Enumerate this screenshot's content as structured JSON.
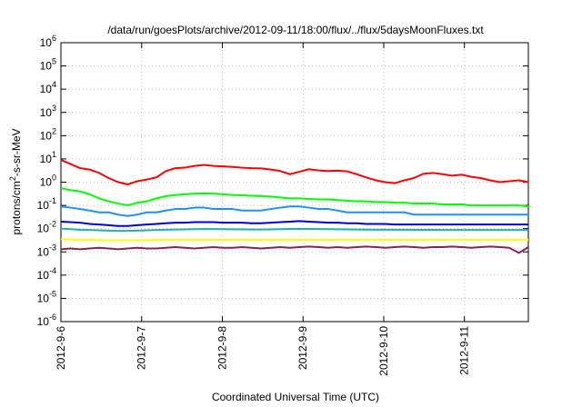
{
  "chart_data": {
    "type": "line",
    "title": "/data/run/goesPlots/archive/2012-09-11/18:00/flux/../flux/5daysMoonFluxes.txt",
    "xlabel": "Coordinated Universal Time (UTC)",
    "ylabel": {
      "base": "protons/cm",
      "sup": "2",
      "rest": "-s-sr-MeV"
    },
    "xlim": [
      "2012-09-06",
      "2012-09-11T19:00"
    ],
    "x_ticks": [
      "2012-9-6",
      "2012-9-7",
      "2012-9-8",
      "2012-9-9",
      "2012-9-10",
      "2012-9-11"
    ],
    "ylim": [
      1e-06,
      1000000.0
    ],
    "y_scale": "log",
    "y_ticks": [
      {
        "base": "10",
        "exp": "6"
      },
      {
        "base": "10",
        "exp": "5"
      },
      {
        "base": "10",
        "exp": "4"
      },
      {
        "base": "10",
        "exp": "3"
      },
      {
        "base": "10",
        "exp": "2"
      },
      {
        "base": "10",
        "exp": "1"
      },
      {
        "base": "10",
        "exp": "0"
      },
      {
        "base": "10",
        "exp": "-1"
      },
      {
        "base": "10",
        "exp": "-2"
      },
      {
        "base": "10",
        "exp": "-3"
      },
      {
        "base": "10",
        "exp": "-4"
      },
      {
        "base": "10",
        "exp": "-5"
      },
      {
        "base": "10",
        "exp": "-6"
      }
    ],
    "grid": true,
    "series": [
      {
        "color": "#ff0000",
        "values": [
          9,
          6,
          4,
          3.5,
          2.5,
          1.5,
          1,
          0.8,
          1.1,
          1.3,
          1.6,
          3,
          4,
          4.2,
          5,
          5.5,
          5,
          4.8,
          4.5,
          4.2,
          4,
          3.9,
          3.5,
          3,
          2.2,
          2.8,
          3.6,
          3.2,
          3,
          3.1,
          2.9,
          2.2,
          1.6,
          1.2,
          1,
          0.9,
          1.2,
          1.5,
          2.3,
          2.5,
          2.2,
          1.9,
          2.1,
          1.7,
          1.5,
          1.2,
          1,
          1.1,
          1.2,
          1
        ]
      },
      {
        "color": "#00ff00",
        "values": [
          0.55,
          0.45,
          0.4,
          0.3,
          0.2,
          0.15,
          0.12,
          0.1,
          0.13,
          0.15,
          0.2,
          0.25,
          0.28,
          0.3,
          0.32,
          0.33,
          0.32,
          0.3,
          0.28,
          0.27,
          0.26,
          0.25,
          0.24,
          0.22,
          0.2,
          0.2,
          0.19,
          0.18,
          0.18,
          0.17,
          0.16,
          0.15,
          0.15,
          0.14,
          0.14,
          0.13,
          0.13,
          0.12,
          0.12,
          0.12,
          0.11,
          0.11,
          0.11,
          0.1,
          0.1,
          0.1,
          0.1,
          0.1,
          0.1,
          0.09
        ]
      },
      {
        "color": "#1e90ff",
        "values": [
          0.09,
          0.08,
          0.07,
          0.06,
          0.05,
          0.05,
          0.04,
          0.035,
          0.04,
          0.05,
          0.05,
          0.06,
          0.07,
          0.07,
          0.08,
          0.08,
          0.07,
          0.07,
          0.07,
          0.06,
          0.06,
          0.06,
          0.07,
          0.08,
          0.09,
          0.09,
          0.08,
          0.07,
          0.07,
          0.06,
          0.05,
          0.05,
          0.05,
          0.05,
          0.05,
          0.05,
          0.05,
          0.04,
          0.04,
          0.04,
          0.04,
          0.04,
          0.04,
          0.04,
          0.04,
          0.04,
          0.04,
          0.04,
          0.04,
          0.04
        ]
      },
      {
        "color": "#0000cd",
        "values": [
          0.02,
          0.019,
          0.018,
          0.016,
          0.015,
          0.014,
          0.013,
          0.013,
          0.014,
          0.015,
          0.016,
          0.017,
          0.018,
          0.018,
          0.019,
          0.019,
          0.019,
          0.018,
          0.018,
          0.018,
          0.017,
          0.017,
          0.018,
          0.019,
          0.02,
          0.021,
          0.02,
          0.019,
          0.018,
          0.018,
          0.017,
          0.017,
          0.016,
          0.016,
          0.016,
          0.015,
          0.015,
          0.015,
          0.015,
          0.015,
          0.015,
          0.015,
          0.015,
          0.015,
          0.015,
          0.015,
          0.015,
          0.015,
          0.015,
          0.015
        ]
      },
      {
        "color": "#20b2aa",
        "values": [
          0.01,
          0.0095,
          0.009,
          0.0088,
          0.0085,
          0.0082,
          0.008,
          0.008,
          0.0082,
          0.0085,
          0.0088,
          0.009,
          0.0092,
          0.0093,
          0.0095,
          0.0096,
          0.0096,
          0.0095,
          0.0094,
          0.0093,
          0.0092,
          0.0092,
          0.0093,
          0.0095,
          0.0097,
          0.0098,
          0.0097,
          0.0096,
          0.0095,
          0.0094,
          0.0093,
          0.0092,
          0.0091,
          0.009,
          0.009,
          0.009,
          0.009,
          0.0089,
          0.0089,
          0.0089,
          0.0088,
          0.0088,
          0.0088,
          0.0088,
          0.0088,
          0.0088,
          0.0088,
          0.0088,
          0.0088,
          0.0088
        ]
      },
      {
        "color": "#ffff00",
        "values": [
          0.0035,
          0.0034,
          0.0033,
          0.0033,
          0.0032,
          0.0032,
          0.0032,
          0.0032,
          0.0032,
          0.0032,
          0.0033,
          0.0033,
          0.0033,
          0.0033,
          0.0033,
          0.0033,
          0.0033,
          0.0033,
          0.0033,
          0.0033,
          0.0033,
          0.0033,
          0.0033,
          0.0033,
          0.0033,
          0.0033,
          0.0033,
          0.0033,
          0.0033,
          0.0033,
          0.0033,
          0.0033,
          0.0033,
          0.0033,
          0.0033,
          0.0033,
          0.0033,
          0.0033,
          0.0033,
          0.0033,
          0.0033,
          0.0033,
          0.0033,
          0.0033,
          0.0033,
          0.0033,
          0.0033,
          0.0033,
          0.0033,
          0.0033
        ]
      },
      {
        "color": "#8b2252",
        "values": [
          0.0013,
          0.0014,
          0.0013,
          0.0014,
          0.0015,
          0.0014,
          0.0013,
          0.0014,
          0.0015,
          0.0014,
          0.0014,
          0.0015,
          0.0016,
          0.0015,
          0.0014,
          0.0015,
          0.0016,
          0.0015,
          0.0015,
          0.0016,
          0.0015,
          0.0014,
          0.0015,
          0.0016,
          0.0015,
          0.0016,
          0.0017,
          0.0016,
          0.0015,
          0.0016,
          0.0015,
          0.0016,
          0.0017,
          0.0016,
          0.0015,
          0.0016,
          0.0017,
          0.0016,
          0.0015,
          0.0016,
          0.0016,
          0.0017,
          0.0016,
          0.0015,
          0.0016,
          0.0017,
          0.0016,
          0.0015,
          0.0009,
          0.0016
        ]
      }
    ]
  }
}
